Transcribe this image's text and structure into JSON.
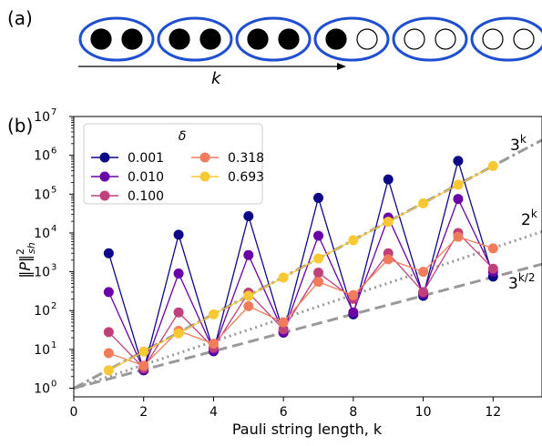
{
  "panel_a": {
    "label": "(a)",
    "k_label": "k",
    "pairs": [
      {
        "left": "filled",
        "right": "filled"
      },
      {
        "left": "filled",
        "right": "filled"
      },
      {
        "left": "filled",
        "right": "filled"
      },
      {
        "left": "filled",
        "right": "empty"
      },
      {
        "left": "empty",
        "right": "empty"
      },
      {
        "left": "empty",
        "right": "empty"
      }
    ],
    "colors": {
      "ellipse": "#1f4fd1",
      "dot": "#000000"
    }
  },
  "panel_b": {
    "label": "(b)"
  },
  "chart_data": {
    "type": "line",
    "title": "",
    "xlabel": "Pauli string length, k",
    "ylabel": "‖P‖²sh",
    "yscale": "log",
    "xlim": [
      0,
      13.4
    ],
    "ylim": [
      0.6,
      10000000
    ],
    "xticks": [
      0,
      2,
      4,
      6,
      8,
      10,
      12
    ],
    "xtick_labels": [
      "0",
      "2",
      "4",
      "6",
      "8",
      "10",
      "12"
    ],
    "yticks": [
      1,
      10,
      100,
      1000,
      10000,
      100000,
      1000000,
      10000000
    ],
    "ytick_labels": [
      {
        "base": "10",
        "exp": "0"
      },
      {
        "base": "10",
        "exp": "1"
      },
      {
        "base": "10",
        "exp": "2"
      },
      {
        "base": "10",
        "exp": "3"
      },
      {
        "base": "10",
        "exp": "4"
      },
      {
        "base": "10",
        "exp": "5"
      },
      {
        "base": "10",
        "exp": "6"
      },
      {
        "base": "10",
        "exp": "7"
      }
    ],
    "grid": false,
    "legend": {
      "title": "δ",
      "placement": "top-left"
    },
    "x": [
      1,
      2,
      3,
      4,
      5,
      6,
      7,
      8,
      9,
      10,
      11,
      12
    ],
    "series": [
      {
        "name": "0.001",
        "color": "#0d0887",
        "values": [
          3000,
          2.9,
          9000,
          9,
          27000,
          27,
          80000,
          80,
          240000,
          240,
          720000,
          750
        ]
      },
      {
        "name": "0.010",
        "color": "#6a00a8",
        "values": [
          300,
          3.0,
          900,
          9.5,
          2700,
          28,
          8500,
          90,
          25000,
          270,
          75000,
          1000
        ]
      },
      {
        "name": "0.100",
        "color": "#c0407c",
        "values": [
          28,
          3.3,
          90,
          11,
          290,
          33,
          950,
          200,
          3000,
          300,
          10000,
          1200
        ]
      },
      {
        "name": "0.318",
        "color": "#f07c5b",
        "values": [
          8,
          3.8,
          30,
          14,
          130,
          50,
          550,
          250,
          2100,
          1000,
          8000,
          4000
        ]
      },
      {
        "name": "0.693",
        "color": "#f9c933",
        "values": [
          2.9,
          8.8,
          26,
          80,
          240,
          710,
          2200,
          6500,
          19500,
          58000,
          175000,
          530000
        ]
      }
    ],
    "reference_lines": [
      {
        "label_base": "3",
        "label_exp": "k",
        "base": 3,
        "style": "dashdot",
        "color": "#999999"
      },
      {
        "label_base": "2",
        "label_exp": "k",
        "base": 2,
        "style": "dotted",
        "color": "#999999"
      },
      {
        "label_base": "3",
        "label_exp": "k/2",
        "base": 1.7320508,
        "style": "dashed",
        "color": "#999999"
      }
    ]
  }
}
